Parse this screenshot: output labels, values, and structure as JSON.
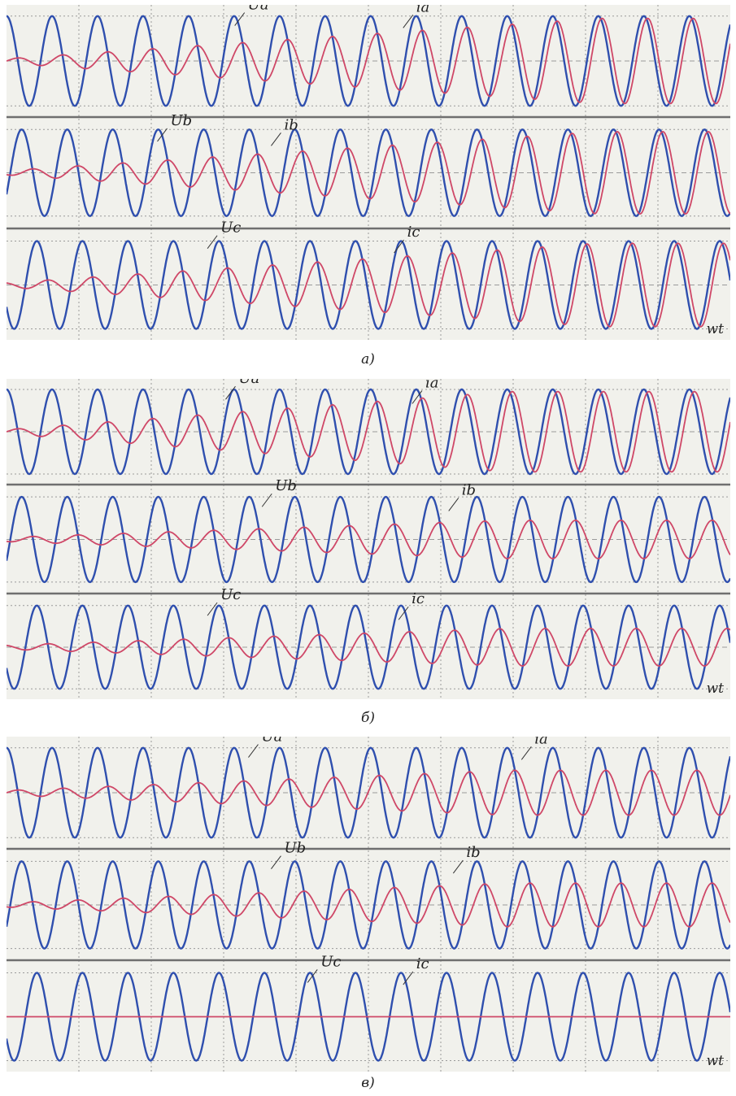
{
  "colors": {
    "voltage": "#2f4fae",
    "current": "#cf4767",
    "grid": "#9a9a9a",
    "separator": "#6f6f6f",
    "background": "#f1f1ec"
  },
  "chart_data": [
    {
      "type": "line",
      "caption": "а)",
      "xlabel": "wt",
      "x_range": [
        0,
        15.9
      ],
      "cycles_visible": 15.9,
      "rows": [
        {
          "series": [
            {
              "name": "Ua",
              "kind": "voltage",
              "amplitude": 1.0,
              "phase_deg": 0
            },
            {
              "name": "ia",
              "kind": "current",
              "amplitude_start": 0.05,
              "amplitude_end": 0.95,
              "ramp_cycles": 13,
              "lag_deg_start": 90,
              "lag_deg_end": 30
            }
          ]
        },
        {
          "series": [
            {
              "name": "Ub",
              "kind": "voltage",
              "amplitude": 1.0,
              "phase_deg": -120
            },
            {
              "name": "ib",
              "kind": "current",
              "amplitude_start": 0.05,
              "amplitude_end": 0.95,
              "ramp_cycles": 13,
              "lag_deg_start": 90,
              "lag_deg_end": 30
            }
          ]
        },
        {
          "series": [
            {
              "name": "Uc",
              "kind": "voltage",
              "amplitude": 1.0,
              "phase_deg": 120
            },
            {
              "name": "ic",
              "kind": "current",
              "amplitude_start": 0.05,
              "amplitude_end": 0.95,
              "ramp_cycles": 13,
              "lag_deg_start": 90,
              "lag_deg_end": 30
            }
          ]
        }
      ]
    },
    {
      "type": "line",
      "caption": "б)",
      "xlabel": "wt",
      "x_range": [
        0,
        15.9
      ],
      "cycles_visible": 15.9,
      "rows": [
        {
          "series": [
            {
              "name": "Ua",
              "kind": "voltage",
              "amplitude": 1.0,
              "phase_deg": 0
            },
            {
              "name": "ia",
              "kind": "current",
              "amplitude_start": 0.05,
              "amplitude_end": 0.95,
              "ramp_cycles": 11,
              "lag_deg_start": 90,
              "lag_deg_end": 40
            }
          ]
        },
        {
          "series": [
            {
              "name": "Ub",
              "kind": "voltage",
              "amplitude": 1.0,
              "phase_deg": -120
            },
            {
              "name": "ib",
              "kind": "current",
              "amplitude_start": 0.05,
              "amplitude_end": 0.45,
              "ramp_cycles": 11,
              "lag_deg_start": 90,
              "lag_deg_end": 60
            }
          ]
        },
        {
          "series": [
            {
              "name": "Uc",
              "kind": "voltage",
              "amplitude": 1.0,
              "phase_deg": 120
            },
            {
              "name": "ic",
              "kind": "current",
              "amplitude_start": 0.05,
              "amplitude_end": 0.45,
              "ramp_cycles": 11,
              "lag_deg_start": 90,
              "lag_deg_end": 60
            }
          ]
        }
      ]
    },
    {
      "type": "line",
      "caption": "в)",
      "xlabel": "wt",
      "x_range": [
        0,
        15.9
      ],
      "cycles_visible": 15.9,
      "rows": [
        {
          "series": [
            {
              "name": "Ua",
              "kind": "voltage",
              "amplitude": 1.0,
              "phase_deg": 0
            },
            {
              "name": "ia",
              "kind": "current",
              "amplitude_start": 0.05,
              "amplitude_end": 0.5,
              "ramp_cycles": 11,
              "lag_deg_start": 90,
              "lag_deg_end": 60
            }
          ]
        },
        {
          "series": [
            {
              "name": "Ub",
              "kind": "voltage",
              "amplitude": 1.0,
              "phase_deg": -120
            },
            {
              "name": "ib",
              "kind": "current",
              "amplitude_start": 0.05,
              "amplitude_end": 0.5,
              "ramp_cycles": 11,
              "lag_deg_start": 90,
              "lag_deg_end": 60
            }
          ]
        },
        {
          "series": [
            {
              "name": "Uc",
              "kind": "voltage",
              "amplitude": 1.0,
              "phase_deg": 120
            },
            {
              "name": "ic",
              "kind": "current",
              "amplitude_start": 0.0,
              "amplitude_end": 0.0,
              "ramp_cycles": 1,
              "lag_deg_start": 90,
              "lag_deg_end": 90
            }
          ]
        }
      ]
    }
  ]
}
